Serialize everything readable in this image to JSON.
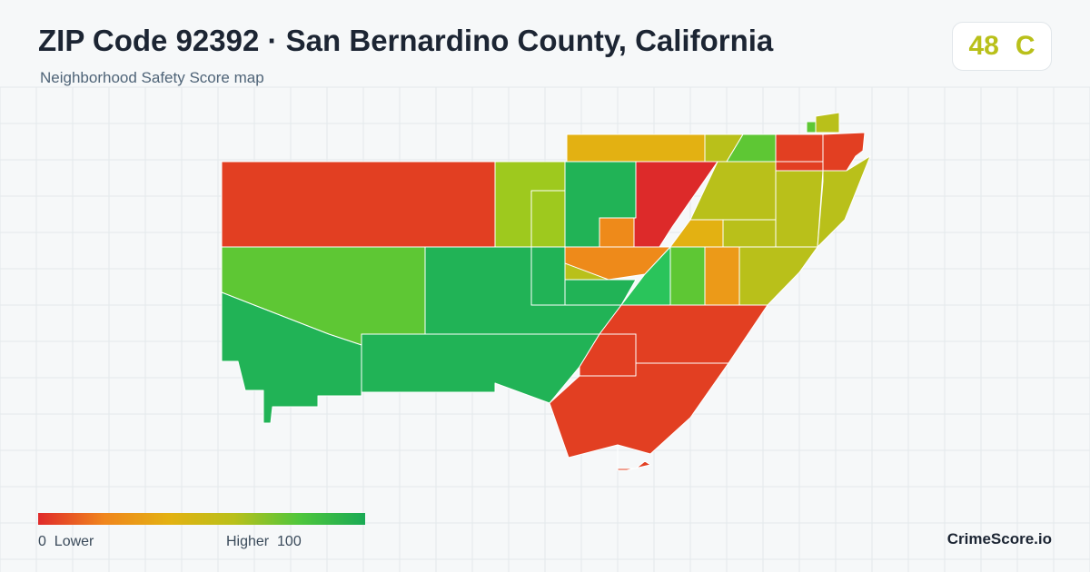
{
  "header": {
    "title": "ZIP Code 92392 · San Bernardino County, California",
    "subtitle": "Neighborhood Safety Score map"
  },
  "score_badge": {
    "score": "48",
    "grade": "C",
    "color": "#b9c01a"
  },
  "legend": {
    "low_value": "0",
    "low_label": "Lower",
    "high_label": "Higher",
    "high_value": "100",
    "gradient_colors": [
      "#e02a2a",
      "#f0851d",
      "#e3b112",
      "#b9c01a",
      "#4ec63c",
      "#1aaa55"
    ]
  },
  "brand": "CrimeScore.io",
  "map": {
    "region_colors": {
      "red": "#dd2a2a",
      "red_orange": "#e23f22",
      "orange": "#ee8a1a",
      "orange_yellow": "#ec9a18",
      "gold": "#e3b112",
      "yellow_green": "#b9c01a",
      "lime": "#9ec91e",
      "light_green": "#5ec734",
      "green": "#21b356",
      "bright_green": "#2ac45b"
    }
  }
}
